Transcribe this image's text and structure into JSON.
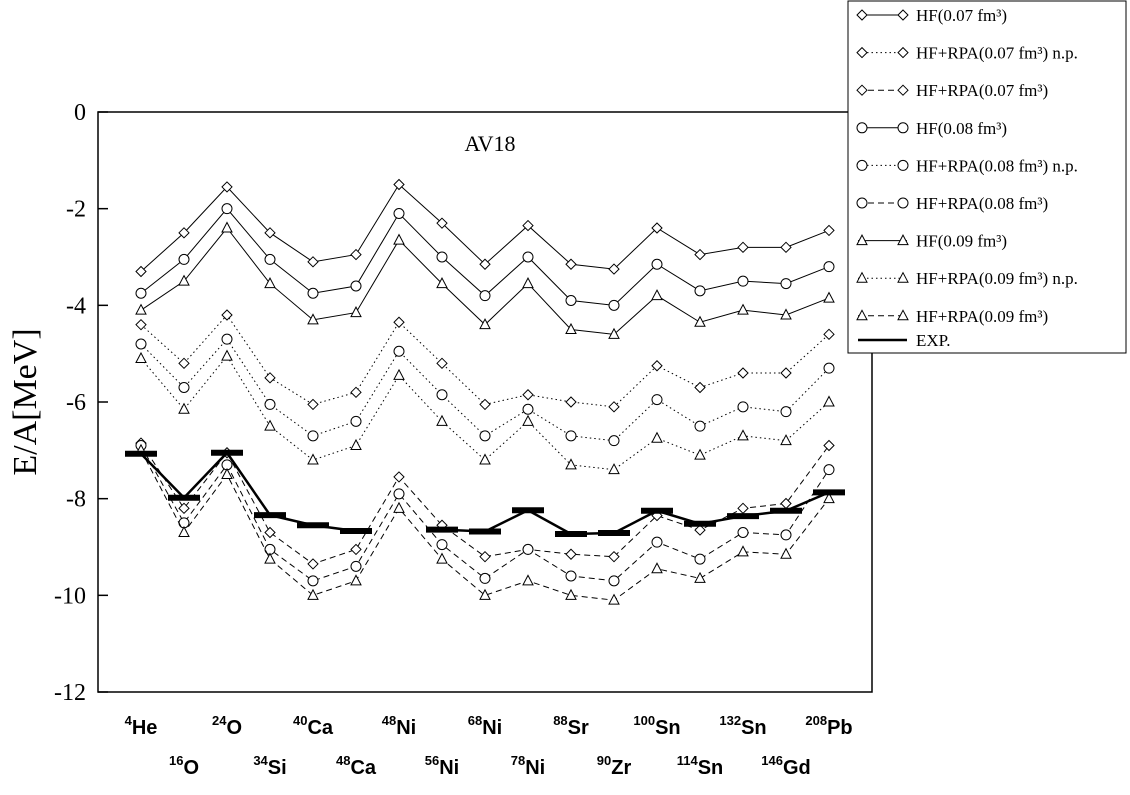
{
  "chart_data": {
    "type": "line",
    "annotation": "AV18",
    "y_label": "E/A[MeV]",
    "categories": [
      "4He",
      "16O",
      "24O",
      "34Si",
      "40Ca",
      "48Ca",
      "48Ni",
      "56Ni",
      "68Ni",
      "78Ni",
      "88Sr",
      "90Zr",
      "100Sn",
      "114Sn",
      "132Sn",
      "146Gd",
      "208Pb"
    ],
    "ylim": [
      -12,
      0
    ],
    "yticks": [
      -12,
      -10,
      -8,
      -6,
      -4,
      -2,
      0
    ],
    "series": [
      {
        "name": "HF(0.07 fm³)",
        "color": "#000000",
        "marker": "diamond",
        "linestyle": "solid",
        "values": [
          -3.3,
          -2.5,
          -1.55,
          -2.5,
          -3.1,
          -2.95,
          -1.5,
          -2.3,
          -3.15,
          -2.35,
          -3.15,
          -3.25,
          -2.4,
          -2.95,
          -2.8,
          -2.8,
          -2.45
        ]
      },
      {
        "name": "HF+RPA(0.07 fm³) n.p.",
        "color": "#000000",
        "marker": "diamond",
        "linestyle": "dotted",
        "values": [
          -4.4,
          -5.2,
          -4.2,
          -5.5,
          -6.05,
          -5.8,
          -4.35,
          -5.2,
          -6.05,
          -5.85,
          -6.0,
          -6.1,
          -5.25,
          -5.7,
          -5.4,
          -5.4,
          -4.6
        ]
      },
      {
        "name": "HF+RPA(0.07 fm³)",
        "color": "#000000",
        "marker": "diamond",
        "linestyle": "dashed",
        "values": [
          -6.85,
          -8.2,
          -7.05,
          -8.7,
          -9.35,
          -9.05,
          -7.55,
          -8.55,
          -9.2,
          -9.05,
          -9.15,
          -9.2,
          -8.35,
          -8.65,
          -8.2,
          -8.1,
          -6.9
        ]
      },
      {
        "name": "HF(0.08 fm³)",
        "color": "#000000",
        "marker": "circle",
        "linestyle": "solid",
        "values": [
          -3.75,
          -3.05,
          -2.0,
          -3.05,
          -3.75,
          -3.6,
          -2.1,
          -3.0,
          -3.8,
          -3.0,
          -3.9,
          -4.0,
          -3.15,
          -3.7,
          -3.5,
          -3.55,
          -3.2
        ]
      },
      {
        "name": "HF+RPA(0.08 fm³) n.p.",
        "color": "#000000",
        "marker": "circle",
        "linestyle": "dotted",
        "values": [
          -4.8,
          -5.7,
          -4.7,
          -6.05,
          -6.7,
          -6.4,
          -4.95,
          -5.85,
          -6.7,
          -6.15,
          -6.7,
          -6.8,
          -5.95,
          -6.5,
          -6.1,
          -6.2,
          -5.3
        ]
      },
      {
        "name": "HF+RPA(0.08 fm³)",
        "color": "#000000",
        "marker": "circle",
        "linestyle": "dashed",
        "values": [
          -6.9,
          -8.5,
          -7.3,
          -9.05,
          -9.7,
          -9.4,
          -7.9,
          -8.95,
          -9.65,
          -9.05,
          -9.6,
          -9.7,
          -8.9,
          -9.25,
          -8.7,
          -8.75,
          -7.4
        ]
      },
      {
        "name": "HF(0.09 fm³)",
        "color": "#000000",
        "marker": "triangle",
        "linestyle": "solid",
        "values": [
          -4.1,
          -3.5,
          -2.4,
          -3.55,
          -4.3,
          -4.15,
          -2.65,
          -3.55,
          -4.4,
          -3.55,
          -4.5,
          -4.6,
          -3.8,
          -4.35,
          -4.1,
          -4.2,
          -3.85
        ]
      },
      {
        "name": "HF+RPA(0.09 fm³) n.p.",
        "color": "#000000",
        "marker": "triangle",
        "linestyle": "dotted",
        "values": [
          -5.1,
          -6.15,
          -5.05,
          -6.5,
          -7.2,
          -6.9,
          -5.45,
          -6.4,
          -7.2,
          -6.4,
          -7.3,
          -7.4,
          -6.75,
          -7.1,
          -6.7,
          -6.8,
          -6.0
        ]
      },
      {
        "name": "HF+RPA(0.09 fm³)",
        "color": "#000000",
        "marker": "triangle",
        "linestyle": "dashed",
        "values": [
          -7.0,
          -8.7,
          -7.5,
          -9.25,
          -10.0,
          -9.7,
          -8.2,
          -9.25,
          -10.0,
          -9.7,
          -10.0,
          -10.1,
          -9.45,
          -9.65,
          -9.1,
          -9.15,
          -8.0
        ]
      },
      {
        "name": "EXP.",
        "color": "#000000",
        "marker": "bar",
        "linestyle": "solid",
        "values": [
          -7.07,
          -7.98,
          -7.05,
          -8.34,
          -8.55,
          -8.67,
          null,
          -8.64,
          -8.68,
          -8.24,
          -8.73,
          -8.71,
          -8.25,
          -8.52,
          -8.36,
          -8.25,
          -7.87
        ]
      }
    ]
  }
}
